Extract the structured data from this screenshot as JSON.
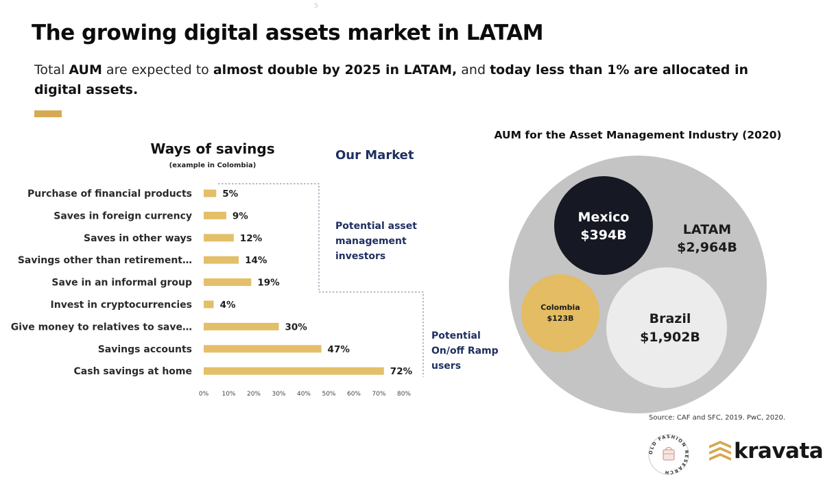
{
  "page_number": "5",
  "title": "The growing digital assets market in LATAM",
  "subtitle": {
    "p1": "Total ",
    "b1": "AUM",
    "p2": " are expected to ",
    "b2": "almost double by 2025 in LATAM,",
    "p3": " and ",
    "b3": "today less than 1% are allocated in digital assets."
  },
  "our_market": "Our Market",
  "potential_am": "Potential asset management investors",
  "potential_onoff": "Potential On/off Ramp users",
  "bubble_chart_title": "AUM for the Asset Management Industry (2020)",
  "source": "Source: CAF and SFC, 2019. PwC, 2020.",
  "logos": {
    "kravata": "kravata",
    "ofr_ring": "OLD FASHION RESEARCH"
  },
  "colors": {
    "bar": "#e3bf69",
    "accent": "#d5aa52",
    "navy": "#1f2f60",
    "latam": "#c4c4c4",
    "mexico": "#161823",
    "brazil": "#ececec",
    "colombia": "#e3bc63"
  },
  "chart_data": [
    {
      "type": "bar",
      "orientation": "horizontal",
      "title": "Ways of savings",
      "subtitle": "(example in Colombia)",
      "categories": [
        "Purchase of financial products",
        "Saves in foreign currency",
        "Saves in other ways",
        "Savings other than retirement…",
        "Save in an informal group",
        "Invest in cryptocurrencies",
        "Give money to relatives to save…",
        "Savings accounts",
        "Cash savings at home"
      ],
      "values": [
        5,
        9,
        12,
        14,
        19,
        4,
        30,
        47,
        72
      ],
      "value_labels": [
        "5%",
        "9%",
        "12%",
        "14%",
        "19%",
        "4%",
        "30%",
        "47%",
        "72%"
      ],
      "xlim": [
        0,
        80
      ],
      "xticks": [
        "0%",
        "10%",
        "20%",
        "30%",
        "40%",
        "50%",
        "60%",
        "70%",
        "80%"
      ],
      "grid": false
    },
    {
      "type": "bubble",
      "title": "AUM for the Asset Management Industry (2020)",
      "items": [
        {
          "name": "LATAM",
          "label": "$2,964B",
          "value": 2964
        },
        {
          "name": "Mexico",
          "label": "$394B",
          "value": 394
        },
        {
          "name": "Brazil",
          "label": "$1,902B",
          "value": 1902
        },
        {
          "name": "Colombia",
          "label": "$123B",
          "value": 123
        }
      ]
    }
  ]
}
